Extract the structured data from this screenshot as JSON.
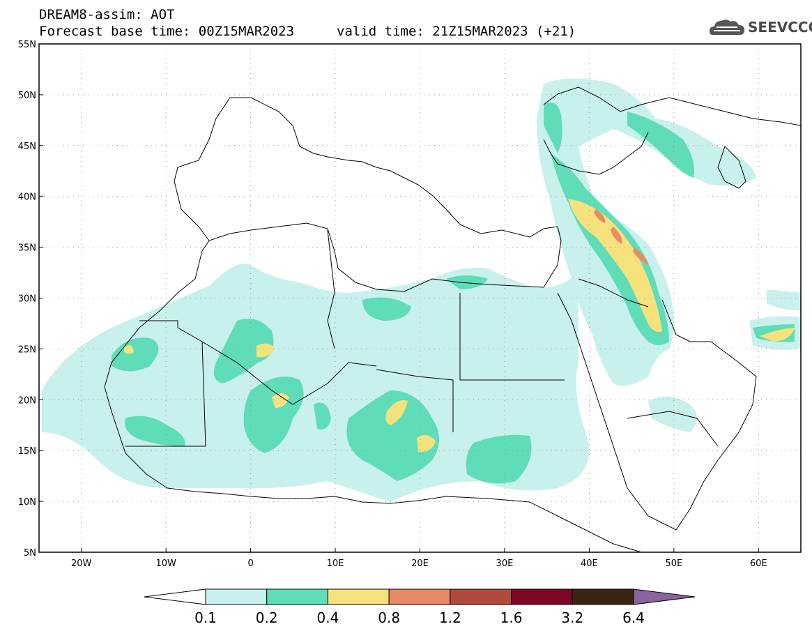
{
  "header": {
    "line1": "DREAM8-assim: AOT",
    "line2": "Forecast base time: 00Z15MAR2023",
    "valid": "valid time: 21Z15MAR2023 (+21)"
  },
  "logo": {
    "text": "SEEVCCC",
    "icon": "cloud-icon"
  },
  "map": {
    "lon_range": [
      -25,
      65
    ],
    "lat_range": [
      5,
      55
    ],
    "lon_ticks": [
      {
        "value": -20,
        "label": "20W"
      },
      {
        "value": -10,
        "label": "10W"
      },
      {
        "value": 0,
        "label": "0"
      },
      {
        "value": 10,
        "label": "10E"
      },
      {
        "value": 20,
        "label": "20E"
      },
      {
        "value": 30,
        "label": "30E"
      },
      {
        "value": 40,
        "label": "40E"
      },
      {
        "value": 50,
        "label": "50E"
      },
      {
        "value": 60,
        "label": "60E"
      }
    ],
    "lat_ticks": [
      {
        "value": 55,
        "label": "55N"
      },
      {
        "value": 50,
        "label": "50N"
      },
      {
        "value": 45,
        "label": "45N"
      },
      {
        "value": 40,
        "label": "40N"
      },
      {
        "value": 35,
        "label": "35N"
      },
      {
        "value": 30,
        "label": "30N"
      },
      {
        "value": 25,
        "label": "25N"
      },
      {
        "value": 20,
        "label": "20N"
      },
      {
        "value": 15,
        "label": "15N"
      },
      {
        "value": 10,
        "label": "10N"
      },
      {
        "value": 5,
        "label": "5N"
      }
    ],
    "gridlines": true
  },
  "colorbar": {
    "levels": [
      "0.1",
      "0.2",
      "0.4",
      "0.8",
      "1.2",
      "1.6",
      "3.2",
      "6.4"
    ],
    "colors": [
      "#ffffff",
      "#c8f0ec",
      "#5fdcb8",
      "#f5e27c",
      "#e88a64",
      "#b04a3c",
      "#7c0624",
      "#3c2414",
      "#8a64a0"
    ]
  }
}
